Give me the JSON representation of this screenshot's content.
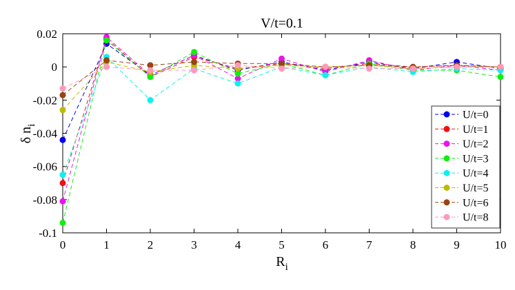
{
  "chart_data": {
    "type": "line",
    "title": "V/t=0.1",
    "xlabel": {
      "main": "R",
      "sub": "i"
    },
    "ylabel": {
      "main": "δ n",
      "sub": "i"
    },
    "xlim": [
      0,
      10
    ],
    "ylim": [
      -0.1,
      0.02
    ],
    "xticks": [
      0,
      1,
      2,
      3,
      4,
      5,
      6,
      7,
      8,
      9,
      10
    ],
    "xtick_labels": [
      "0",
      "1",
      "2",
      "3",
      "4",
      "5",
      "6",
      "7",
      "8",
      "9",
      "10"
    ],
    "yticks": [
      -0.1,
      -0.08,
      -0.06,
      -0.04,
      -0.02,
      0,
      0.02
    ],
    "ytick_labels": [
      "-0.1",
      "-0.08",
      "-0.06",
      "-0.04",
      "-0.02",
      "0",
      "0.02"
    ],
    "grid": false,
    "legend_position": "right",
    "x": [
      0,
      1,
      2,
      3,
      4,
      5,
      6,
      7,
      8,
      9,
      10
    ],
    "series": [
      {
        "name": "U/t=0",
        "color": "#0000ee",
        "values": [
          -0.044,
          0.014,
          -0.005,
          0.007,
          -0.002,
          0.003,
          -0.002,
          0.003,
          -0.001,
          0.003,
          -0.001
        ]
      },
      {
        "name": "U/t=1",
        "color": "#ee1111",
        "values": [
          -0.07,
          0.017,
          -0.006,
          0.006,
          -0.001,
          0.002,
          -0.001,
          0.002,
          0.0,
          0.001,
          0.0
        ]
      },
      {
        "name": "U/t=2",
        "color": "#ee11ee",
        "values": [
          -0.081,
          0.018,
          -0.005,
          0.007,
          -0.007,
          0.005,
          -0.003,
          0.004,
          -0.002,
          0.001,
          -0.002
        ]
      },
      {
        "name": "U/t=3",
        "color": "#11ee11",
        "values": [
          -0.094,
          0.016,
          -0.006,
          0.009,
          -0.004,
          0.002,
          -0.005,
          0.002,
          -0.002,
          -0.002,
          -0.006
        ]
      },
      {
        "name": "U/t=4",
        "color": "#11eeee",
        "values": [
          -0.065,
          0.006,
          -0.02,
          -0.001,
          -0.01,
          0.0,
          -0.005,
          0.0,
          -0.003,
          -0.001,
          -0.002
        ]
      },
      {
        "name": "U/t=5",
        "color": "#bbbb00",
        "values": [
          -0.026,
          0.003,
          -0.003,
          0.001,
          -0.001,
          0.001,
          0.0,
          0.001,
          -0.001,
          0.0,
          0.0
        ]
      },
      {
        "name": "U/t=6",
        "color": "#994411",
        "values": [
          -0.017,
          0.004,
          0.001,
          0.003,
          0.002,
          0.002,
          0.0,
          0.001,
          0.0,
          0.001,
          0.0
        ]
      },
      {
        "name": "U/t=8",
        "color": "#ff99bb",
        "values": [
          -0.013,
          0.0,
          -0.002,
          -0.002,
          0.001,
          -0.001,
          0.0,
          -0.001,
          -0.001,
          0.0,
          0.0
        ]
      }
    ]
  }
}
